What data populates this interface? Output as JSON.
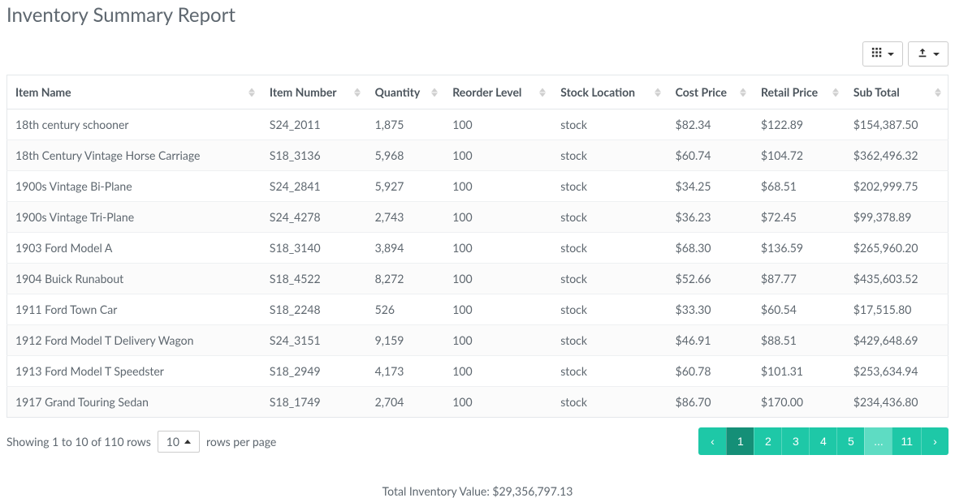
{
  "title": "Inventory Summary Report",
  "toolbar": {
    "columns_btn": "columns",
    "export_btn": "export"
  },
  "table": {
    "columns": [
      {
        "key": "name",
        "label": "Item Name"
      },
      {
        "key": "number",
        "label": "Item Number"
      },
      {
        "key": "qty",
        "label": "Quantity"
      },
      {
        "key": "reorder",
        "label": "Reorder Level"
      },
      {
        "key": "loc",
        "label": "Stock Location"
      },
      {
        "key": "cost",
        "label": "Cost Price"
      },
      {
        "key": "retail",
        "label": "Retail Price"
      },
      {
        "key": "subtotal",
        "label": "Sub Total"
      }
    ],
    "rows": [
      {
        "name": "18th century schooner",
        "number": "S24_2011",
        "qty": "1,875",
        "reorder": "100",
        "loc": "stock",
        "cost": "$82.34",
        "retail": "$122.89",
        "subtotal": "$154,387.50"
      },
      {
        "name": "18th Century Vintage Horse Carriage",
        "number": "S18_3136",
        "qty": "5,968",
        "reorder": "100",
        "loc": "stock",
        "cost": "$60.74",
        "retail": "$104.72",
        "subtotal": "$362,496.32"
      },
      {
        "name": "1900s Vintage Bi-Plane",
        "number": "S24_2841",
        "qty": "5,927",
        "reorder": "100",
        "loc": "stock",
        "cost": "$34.25",
        "retail": "$68.51",
        "subtotal": "$202,999.75"
      },
      {
        "name": "1900s Vintage Tri-Plane",
        "number": "S24_4278",
        "qty": "2,743",
        "reorder": "100",
        "loc": "stock",
        "cost": "$36.23",
        "retail": "$72.45",
        "subtotal": "$99,378.89"
      },
      {
        "name": "1903 Ford Model A",
        "number": "S18_3140",
        "qty": "3,894",
        "reorder": "100",
        "loc": "stock",
        "cost": "$68.30",
        "retail": "$136.59",
        "subtotal": "$265,960.20"
      },
      {
        "name": "1904 Buick Runabout",
        "number": "S18_4522",
        "qty": "8,272",
        "reorder": "100",
        "loc": "stock",
        "cost": "$52.66",
        "retail": "$87.77",
        "subtotal": "$435,603.52"
      },
      {
        "name": "1911 Ford Town Car",
        "number": "S18_2248",
        "qty": "526",
        "reorder": "100",
        "loc": "stock",
        "cost": "$33.30",
        "retail": "$60.54",
        "subtotal": "$17,515.80"
      },
      {
        "name": "1912 Ford Model T Delivery Wagon",
        "number": "S24_3151",
        "qty": "9,159",
        "reorder": "100",
        "loc": "stock",
        "cost": "$46.91",
        "retail": "$88.51",
        "subtotal": "$429,648.69"
      },
      {
        "name": "1913 Ford Model T Speedster",
        "number": "S18_2949",
        "qty": "4,173",
        "reorder": "100",
        "loc": "stock",
        "cost": "$60.78",
        "retail": "$101.31",
        "subtotal": "$253,634.94"
      },
      {
        "name": "1917 Grand Touring Sedan",
        "number": "S18_1749",
        "qty": "2,704",
        "reorder": "100",
        "loc": "stock",
        "cost": "$86.70",
        "retail": "$170.00",
        "subtotal": "$234,436.80"
      }
    ]
  },
  "footer": {
    "info": "Showing 1 to 10 of 110 rows",
    "per_page_value": "10",
    "per_page_suffix": "rows per page",
    "pages": [
      "‹",
      "1",
      "2",
      "3",
      "4",
      "5",
      "...",
      "11",
      "›"
    ],
    "active_page_index": 1,
    "ellipsis_index": 6
  },
  "total": {
    "label": "Total Inventory Value:",
    "value": "$29,356,797.13"
  },
  "colors": {
    "accent": "#1ec8a7",
    "accent_dark": "#158f77",
    "accent_light": "#5edcc3",
    "border": "#e4e7ea",
    "text": "#5e676f"
  }
}
